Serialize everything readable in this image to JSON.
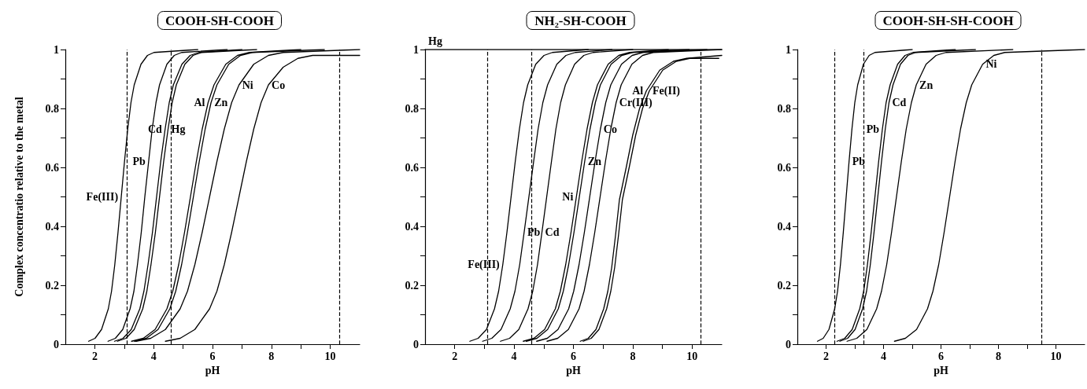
{
  "chart_data": [
    {
      "type": "line",
      "title": "COOH-SH-COOH",
      "xlabel": "pH",
      "ylabel": "Complex concentratio relative to the metal",
      "xlim": [
        1,
        11
      ],
      "ylim": [
        0,
        1
      ],
      "xticks": [
        2,
        {
          "value": 3,
          "label": null
        },
        4,
        {
          "value": 5,
          "label": null
        },
        6,
        {
          "value": 7,
          "label": null
        },
        8,
        {
          "value": 9,
          "label": null
        },
        10
      ],
      "yticks": [
        0,
        {
          "value": 0.1,
          "label": null
        },
        0.2,
        {
          "value": 0.3,
          "label": null
        },
        0.4,
        {
          "value": 0.5,
          "label": null
        },
        0.6,
        {
          "value": 0.7,
          "label": null
        },
        0.8,
        {
          "value": 0.9,
          "label": null
        },
        1
      ],
      "grid": false,
      "marker": "none",
      "line_style": "solid",
      "ref_lines": [
        {
          "axis": "x",
          "value": 3.1,
          "color": "#000000",
          "line_style": "dashed"
        },
        {
          "axis": "x",
          "value": 4.6,
          "color": "#000000",
          "line_style": "dashed"
        },
        {
          "axis": "x",
          "value": 10.3,
          "color": "#000000",
          "line_style": "dashed"
        }
      ],
      "series": [
        {
          "name": "Fe(III)",
          "color": "#000000",
          "x": [
            1.79,
            2.01,
            2.23,
            2.46,
            2.57,
            2.68,
            2.79,
            2.9,
            3.01,
            3.12,
            3.23,
            3.34,
            3.57,
            3.79,
            4.01,
            5.5
          ],
          "values": [
            0.01,
            0.02,
            0.05,
            0.12,
            0.18,
            0.27,
            0.38,
            0.5,
            0.62,
            0.73,
            0.82,
            0.88,
            0.95,
            0.98,
            0.99,
            1
          ]
        },
        {
          "name": "Pb",
          "color": "#000000",
          "x": [
            2.45,
            2.7,
            2.95,
            3.2,
            3.33,
            3.45,
            3.58,
            3.7,
            3.83,
            3.95,
            4.08,
            4.2,
            4.45,
            4.7,
            4.95,
            6.5
          ],
          "values": [
            0.01,
            0.02,
            0.05,
            0.12,
            0.18,
            0.27,
            0.38,
            0.5,
            0.62,
            0.73,
            0.82,
            0.88,
            0.95,
            0.98,
            0.99,
            1
          ]
        },
        {
          "name": "Cd",
          "color": "#000000",
          "x": [
            2.67,
            2.96,
            3.24,
            3.53,
            3.67,
            3.81,
            3.96,
            4.1,
            4.24,
            4.39,
            4.53,
            4.67,
            4.96,
            5.24,
            5.53,
            7
          ],
          "values": [
            0.01,
            0.02,
            0.05,
            0.12,
            0.18,
            0.27,
            0.38,
            0.5,
            0.62,
            0.73,
            0.82,
            0.88,
            0.95,
            0.98,
            0.99,
            1
          ]
        },
        {
          "name": "Hg",
          "color": "#000000",
          "x": [
            2.77,
            3.06,
            3.34,
            3.63,
            3.77,
            3.91,
            4.06,
            4.2,
            4.34,
            4.49,
            4.63,
            4.77,
            5.06,
            5.34,
            5.63,
            7.5
          ],
          "values": [
            0.01,
            0.02,
            0.05,
            0.12,
            0.18,
            0.27,
            0.38,
            0.5,
            0.62,
            0.73,
            0.82,
            0.88,
            0.95,
            0.98,
            0.99,
            1
          ]
        },
        {
          "name": "Al",
          "color": "#000000",
          "x": [
            3.25,
            3.65,
            4.05,
            4.45,
            4.65,
            4.85,
            5.05,
            5.25,
            5.45,
            5.65,
            5.85,
            6.05,
            6.45,
            6.85,
            7.25,
            9
          ],
          "values": [
            0.01,
            0.02,
            0.05,
            0.12,
            0.18,
            0.27,
            0.38,
            0.5,
            0.62,
            0.73,
            0.82,
            0.88,
            0.95,
            0.98,
            0.99,
            1
          ]
        },
        {
          "name": "Zn",
          "color": "#000000",
          "x": [
            3.35,
            3.75,
            4.15,
            4.55,
            4.75,
            4.95,
            5.15,
            5.35,
            5.55,
            5.75,
            5.95,
            6.15,
            6.55,
            6.95,
            7.35,
            9.8
          ],
          "values": [
            0.01,
            0.02,
            0.05,
            0.12,
            0.18,
            0.27,
            0.38,
            0.5,
            0.62,
            0.73,
            0.82,
            0.88,
            0.95,
            0.98,
            0.99,
            1
          ]
        },
        {
          "name": "Ni",
          "color": "#000000",
          "x": [
            3.4,
            3.9,
            4.4,
            4.9,
            5.15,
            5.4,
            5.65,
            5.9,
            6.15,
            6.4,
            6.65,
            6.9,
            7.4,
            7.9,
            8.4,
            11
          ],
          "values": [
            0.01,
            0.02,
            0.05,
            0.12,
            0.18,
            0.27,
            0.38,
            0.5,
            0.62,
            0.73,
            0.82,
            0.88,
            0.95,
            0.98,
            0.99,
            1
          ]
        },
        {
          "name": "Co",
          "color": "#000000",
          "x": [
            4.4,
            4.9,
            5.4,
            5.9,
            6.15,
            6.4,
            6.65,
            6.9,
            7.15,
            7.4,
            7.65,
            7.9,
            8.4,
            8.9,
            9.4,
            11
          ],
          "values": [
            0.01,
            0.02,
            0.05,
            0.12,
            0.18,
            0.27,
            0.38,
            0.5,
            0.62,
            0.73,
            0.82,
            0.88,
            0.94,
            0.97,
            0.98,
            0.98
          ]
        }
      ]
    },
    {
      "type": "line",
      "title": "NH₂-SH-COOH",
      "xlabel": "pH",
      "xlim": [
        1,
        11
      ],
      "ylim": [
        0,
        1
      ],
      "xticks": [
        2,
        {
          "value": 3,
          "label": null
        },
        4,
        {
          "value": 5,
          "label": null
        },
        6,
        {
          "value": 7,
          "label": null
        },
        8,
        {
          "value": 9,
          "label": null
        },
        10
      ],
      "yticks": [
        0,
        {
          "value": 0.1,
          "label": null
        },
        0.2,
        {
          "value": 0.3,
          "label": null
        },
        0.4,
        {
          "value": 0.5,
          "label": null
        },
        0.6,
        {
          "value": 0.7,
          "label": null
        },
        0.8,
        {
          "value": 0.9,
          "label": null
        },
        1
      ],
      "grid": false,
      "marker": "none",
      "line_style": "solid",
      "ref_lines": [
        {
          "axis": "x",
          "value": 3.1,
          "color": "#000000",
          "line_style": "dashed"
        },
        {
          "axis": "x",
          "value": 4.6,
          "color": "#000000",
          "line_style": "dashed"
        },
        {
          "axis": "x",
          "value": 10.3,
          "color": "#000000",
          "line_style": "dashed"
        }
      ],
      "series": [
        {
          "name": "Hg",
          "color": "#000000",
          "x": [
            1,
            11
          ],
          "values": [
            1,
            1
          ]
        },
        {
          "name": "Fe(III)",
          "color": "#000000",
          "x": [
            2.51,
            2.79,
            3.07,
            3.34,
            3.48,
            3.62,
            3.76,
            3.9,
            4.04,
            4.18,
            4.32,
            4.46,
            4.73,
            5.01,
            5.29,
            6.5
          ],
          "values": [
            0.01,
            0.02,
            0.05,
            0.12,
            0.18,
            0.27,
            0.38,
            0.5,
            0.62,
            0.73,
            0.82,
            0.88,
            0.95,
            0.98,
            0.99,
            1
          ]
        },
        {
          "name": "Pb",
          "color": "#000000",
          "x": [
            2.94,
            3.25,
            3.56,
            3.87,
            4.03,
            4.19,
            4.34,
            4.5,
            4.66,
            4.81,
            4.97,
            5.13,
            5.44,
            5.75,
            6.06,
            7.3
          ],
          "values": [
            0.01,
            0.02,
            0.05,
            0.12,
            0.18,
            0.27,
            0.38,
            0.5,
            0.62,
            0.73,
            0.82,
            0.88,
            0.95,
            0.98,
            0.99,
            1
          ]
        },
        {
          "name": "Cd",
          "color": "#000000",
          "x": [
            3.54,
            3.85,
            4.16,
            4.47,
            4.63,
            4.79,
            4.94,
            5.1,
            5.26,
            5.41,
            5.57,
            5.73,
            6.04,
            6.35,
            6.66,
            8
          ],
          "values": [
            0.01,
            0.02,
            0.05,
            0.12,
            0.18,
            0.27,
            0.38,
            0.5,
            0.62,
            0.73,
            0.82,
            0.88,
            0.95,
            0.98,
            0.99,
            1
          ]
        },
        {
          "name": "Ni",
          "color": "#000000",
          "x": [
            4.31,
            4.67,
            5.03,
            5.39,
            5.56,
            5.74,
            5.92,
            6.1,
            6.28,
            6.46,
            6.64,
            6.81,
            7.17,
            7.53,
            7.89,
            9.2
          ],
          "values": [
            0.01,
            0.02,
            0.05,
            0.12,
            0.18,
            0.27,
            0.38,
            0.5,
            0.62,
            0.73,
            0.82,
            0.88,
            0.95,
            0.98,
            0.99,
            1
          ]
        },
        {
          "name": "Zn",
          "color": "#000000",
          "x": [
            4.41,
            4.77,
            5.13,
            5.49,
            5.66,
            5.84,
            6.02,
            6.2,
            6.38,
            6.56,
            6.74,
            6.91,
            7.27,
            7.63,
            7.99,
            9.9
          ],
          "values": [
            0.01,
            0.02,
            0.05,
            0.12,
            0.18,
            0.27,
            0.38,
            0.5,
            0.62,
            0.73,
            0.82,
            0.88,
            0.95,
            0.98,
            0.99,
            1
          ]
        },
        {
          "name": "Co",
          "color": "#000000",
          "x": [
            4.76,
            5.12,
            5.48,
            5.84,
            6.01,
            6.19,
            6.37,
            6.55,
            6.73,
            6.91,
            7.09,
            7.26,
            7.62,
            7.98,
            8.34,
            10.5
          ],
          "values": [
            0.01,
            0.02,
            0.05,
            0.12,
            0.18,
            0.27,
            0.38,
            0.5,
            0.62,
            0.73,
            0.82,
            0.88,
            0.95,
            0.98,
            0.99,
            1
          ]
        },
        {
          "name": "Cr(III)",
          "color": "#000000",
          "x": [
            5.11,
            5.47,
            5.83,
            6.19,
            6.36,
            6.54,
            6.72,
            6.9,
            7.08,
            7.26,
            7.44,
            7.61,
            7.97,
            8.33,
            8.69,
            11
          ],
          "values": [
            0.01,
            0.02,
            0.05,
            0.12,
            0.18,
            0.27,
            0.38,
            0.5,
            0.62,
            0.73,
            0.82,
            0.88,
            0.95,
            0.98,
            0.99,
            1
          ]
        },
        {
          "name": "Al",
          "color": "#000000",
          "x": [
            6.23,
            6.5,
            6.76,
            7.02,
            7.16,
            7.29,
            7.42,
            7.55,
            7.78,
            8.0,
            8.23,
            8.46,
            8.91,
            9.37,
            9.82,
            11
          ],
          "values": [
            0.01,
            0.02,
            0.05,
            0.12,
            0.18,
            0.26,
            0.37,
            0.49,
            0.6,
            0.71,
            0.8,
            0.86,
            0.93,
            0.96,
            0.97,
            0.98
          ]
        },
        {
          "name": "Fe(II)",
          "color": "#000000",
          "x": [
            6.33,
            6.6,
            6.86,
            7.12,
            7.26,
            7.39,
            7.52,
            7.65,
            7.88,
            8.1,
            8.33,
            8.56,
            9.01,
            9.47,
            9.92,
            10.9
          ],
          "values": [
            0.01,
            0.02,
            0.05,
            0.12,
            0.18,
            0.26,
            0.37,
            0.49,
            0.6,
            0.71,
            0.8,
            0.86,
            0.93,
            0.96,
            0.97,
            0.97
          ]
        }
      ]
    },
    {
      "type": "line",
      "title": "COOH-SH-SH-COOH",
      "xlabel": "pH",
      "xlim": [
        1,
        11
      ],
      "ylim": [
        0,
        1
      ],
      "xticks": [
        2,
        {
          "value": 3,
          "label": null
        },
        4,
        {
          "value": 5,
          "label": null
        },
        6,
        {
          "value": 7,
          "label": null
        },
        8,
        {
          "value": 9,
          "label": null
        },
        10
      ],
      "yticks": [
        0,
        {
          "value": 0.1,
          "label": null
        },
        0.2,
        {
          "value": 0.3,
          "label": null
        },
        0.4,
        {
          "value": 0.5,
          "label": null
        },
        0.6,
        {
          "value": 0.7,
          "label": null
        },
        0.8,
        {
          "value": 0.9,
          "label": null
        },
        1
      ],
      "grid": false,
      "marker": "none",
      "line_style": "solid",
      "ref_lines": [
        {
          "axis": "x",
          "value": 2.3,
          "color": "#000000",
          "line_style": "dashed"
        },
        {
          "axis": "x",
          "value": 3.3,
          "color": "#000000",
          "line_style": "dashed"
        },
        {
          "axis": "x",
          "value": 9.5,
          "color": "#000000",
          "line_style": "dashed"
        }
      ],
      "series": [
        {
          "name": "Pb",
          "color": "#000000",
          "x": [
            1.7,
            1.9,
            2.1,
            2.3,
            2.4,
            2.5,
            2.6,
            2.7,
            2.8,
            2.9,
            3.0,
            3.1,
            3.3,
            3.5,
            3.7,
            5
          ],
          "values": [
            0.01,
            0.02,
            0.05,
            0.12,
            0.18,
            0.27,
            0.38,
            0.5,
            0.62,
            0.73,
            0.82,
            0.88,
            0.95,
            0.98,
            0.99,
            1
          ]
        },
        {
          "name": "Pb",
          "color": "#000000",
          "x": [
            2.38,
            2.65,
            2.91,
            3.17,
            3.31,
            3.44,
            3.57,
            3.7,
            3.83,
            3.96,
            4.09,
            4.23,
            4.49,
            4.75,
            5.02,
            6.5
          ],
          "values": [
            0.01,
            0.02,
            0.05,
            0.12,
            0.18,
            0.27,
            0.38,
            0.5,
            0.62,
            0.73,
            0.82,
            0.88,
            0.95,
            0.98,
            0.99,
            1
          ]
        },
        {
          "name": "Cd",
          "color": "#000000",
          "x": [
            2.48,
            2.75,
            3.01,
            3.27,
            3.41,
            3.54,
            3.67,
            3.8,
            3.93,
            4.06,
            4.19,
            4.33,
            4.59,
            4.85,
            5.12,
            7.2
          ],
          "values": [
            0.01,
            0.02,
            0.05,
            0.12,
            0.18,
            0.27,
            0.38,
            0.5,
            0.62,
            0.73,
            0.82,
            0.88,
            0.95,
            0.98,
            0.99,
            1
          ]
        },
        {
          "name": "Zn",
          "color": "#000000",
          "x": [
            2.73,
            3.07,
            3.42,
            3.76,
            3.93,
            4.11,
            4.28,
            4.45,
            4.62,
            4.79,
            4.97,
            5.14,
            5.48,
            5.83,
            6.17,
            8.5
          ],
          "values": [
            0.01,
            0.02,
            0.05,
            0.12,
            0.18,
            0.27,
            0.38,
            0.5,
            0.62,
            0.73,
            0.82,
            0.88,
            0.95,
            0.98,
            0.99,
            1
          ]
        },
        {
          "name": "Ni",
          "color": "#000000",
          "x": [
            4.38,
            4.76,
            5.15,
            5.53,
            5.72,
            5.92,
            6.11,
            6.3,
            6.49,
            6.68,
            6.88,
            7.07,
            7.45,
            7.84,
            8.22,
            11
          ],
          "values": [
            0.01,
            0.02,
            0.05,
            0.12,
            0.18,
            0.27,
            0.38,
            0.5,
            0.62,
            0.73,
            0.82,
            0.88,
            0.95,
            0.98,
            0.99,
            1
          ]
        }
      ]
    }
  ]
}
